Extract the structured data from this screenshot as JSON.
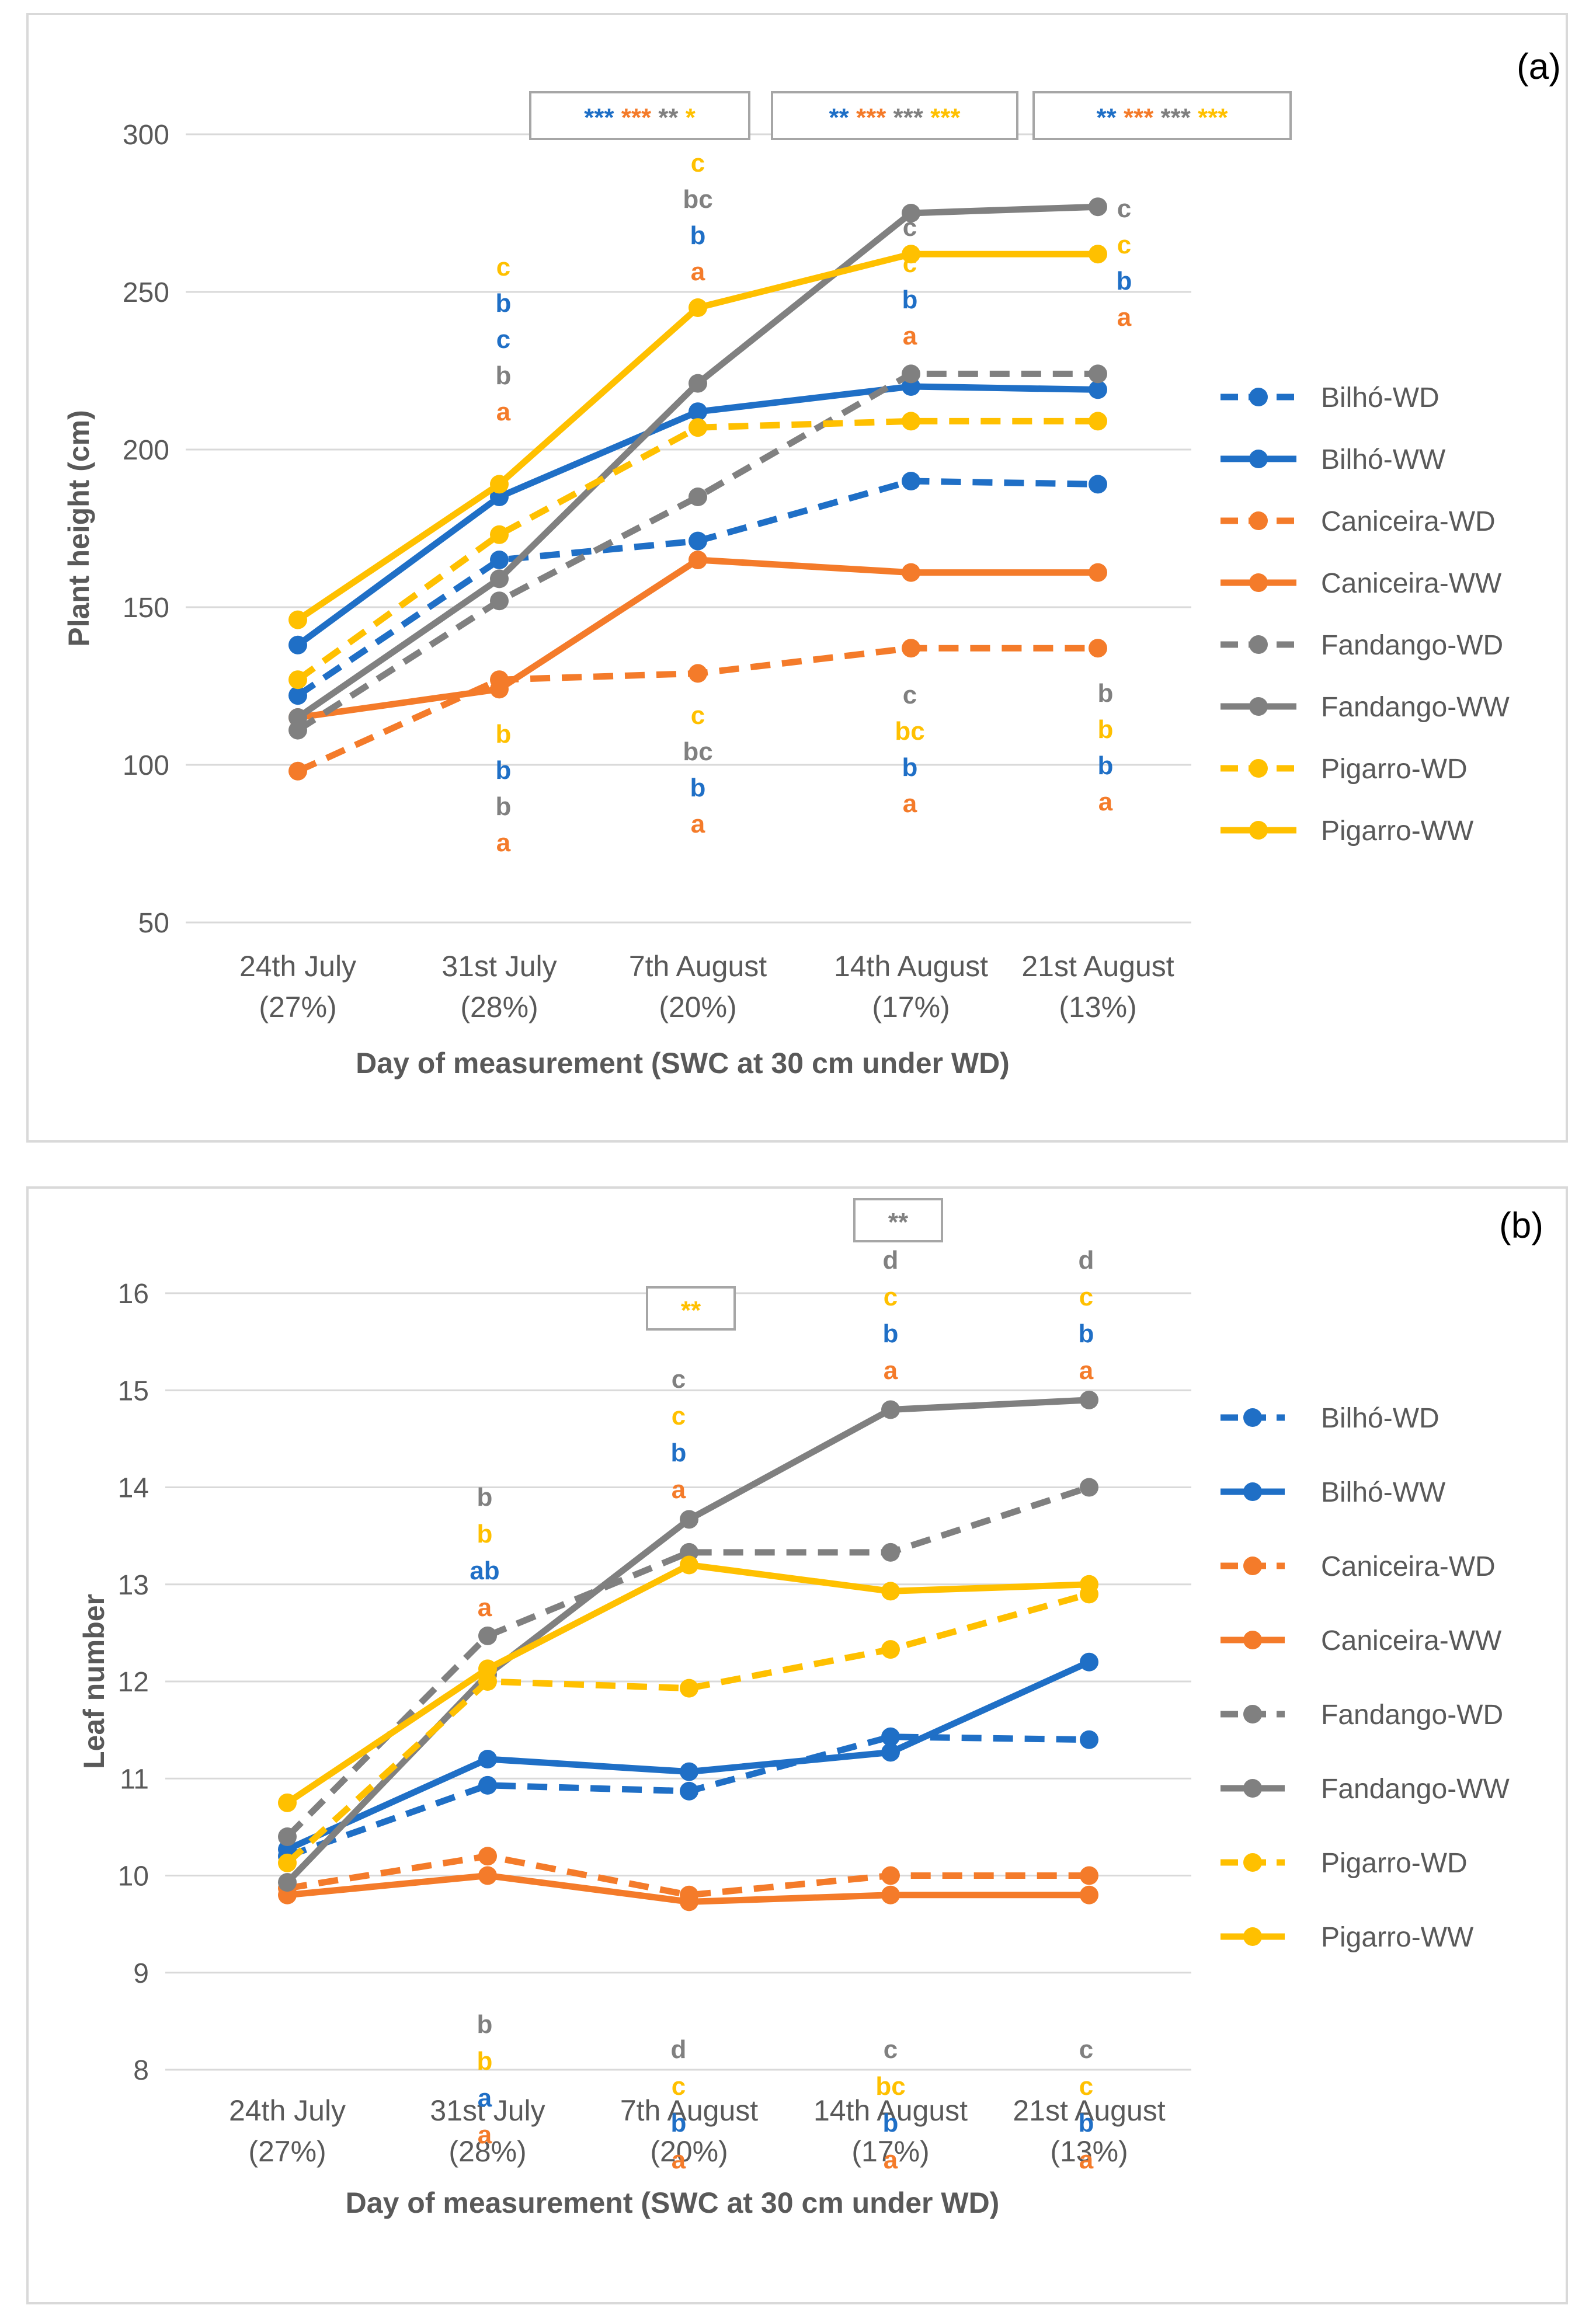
{
  "colors": {
    "Bilhó": "#1f6fc6",
    "Caniceira": "#f47b2a",
    "Fandango": "#808080",
    "Pigarro": "#ffc000",
    "grid": "#d9d9d9",
    "axis_text": "#595959",
    "box_border": "#a6a6a6"
  },
  "chart_data": [
    {
      "id": "a",
      "panel_label": "(a)",
      "type": "line",
      "title": "",
      "xlabel": "Day of measurement (SWC at 30 cm under WD)",
      "ylabel": "Plant height (cm)",
      "ylim": [
        50,
        300
      ],
      "yticks": [
        50,
        100,
        150,
        200,
        250,
        300
      ],
      "categories": [
        {
          "line1": "24th July",
          "line2": "(27%)"
        },
        {
          "line1": "31st July",
          "line2": "(28%)"
        },
        {
          "line1": "7th August",
          "line2": "(20%)"
        },
        {
          "line1": "14th August",
          "line2": "(17%)"
        },
        {
          "line1": "21st August",
          "line2": "(13%)"
        }
      ],
      "series": [
        {
          "name": "Bilhó-WD",
          "cultivar": "Bilhó",
          "dashed": true,
          "values": [
            122,
            165,
            171,
            190,
            189
          ]
        },
        {
          "name": "Bilhó-WW",
          "cultivar": "Bilhó",
          "dashed": false,
          "values": [
            138,
            185,
            212,
            220,
            219
          ]
        },
        {
          "name": "Caniceira-WD",
          "cultivar": "Caniceira",
          "dashed": true,
          "values": [
            98,
            127,
            129,
            137,
            137
          ]
        },
        {
          "name": "Caniceira-WW",
          "cultivar": "Caniceira",
          "dashed": false,
          "values": [
            115,
            124,
            165,
            161,
            161
          ]
        },
        {
          "name": "Fandango-WD",
          "cultivar": "Fandango",
          "dashed": true,
          "values": [
            111,
            152,
            185,
            224,
            224
          ]
        },
        {
          "name": "Fandango-WW",
          "cultivar": "Fandango",
          "dashed": false,
          "values": [
            115,
            159,
            221,
            275,
            277
          ]
        },
        {
          "name": "Pigarro-WD",
          "cultivar": "Pigarro",
          "dashed": true,
          "values": [
            127,
            173,
            207,
            209,
            209
          ]
        },
        {
          "name": "Pigarro-WW",
          "cultivar": "Pigarro",
          "dashed": false,
          "values": [
            146,
            189,
            245,
            262,
            262
          ]
        }
      ],
      "significance": [
        {
          "category_start": 1,
          "category_end": 2,
          "marks": [
            [
              "***",
              "Bilhó"
            ],
            [
              "***",
              "Caniceira"
            ],
            [
              "**",
              "Fandango"
            ],
            [
              "*",
              "Pigarro"
            ]
          ]
        },
        {
          "category_start": 2,
          "category_end": 3,
          "marks": [
            [
              "**",
              "Bilhó"
            ],
            [
              "***",
              "Caniceira"
            ],
            [
              "***",
              "Fandango"
            ],
            [
              "***",
              "Pigarro"
            ]
          ]
        },
        {
          "category_start": 3,
          "category_end": 4,
          "marks": [
            [
              "**",
              "Bilhó"
            ],
            [
              "***",
              "Caniceira"
            ],
            [
              "***",
              "Fandango"
            ],
            [
              "***",
              "Pigarro"
            ]
          ]
        }
      ],
      "letter_groups": [
        {
          "category": 1,
          "position": "above",
          "letters": [
            [
              "a",
              "Caniceira"
            ],
            [
              "b",
              "Fandango"
            ],
            [
              "c",
              "Bilhó"
            ],
            [
              "b",
              "Bilhó"
            ],
            [
              "c",
              "Pigarro"
            ]
          ]
        },
        {
          "category": 1,
          "position": "below",
          "letters": [
            [
              "b",
              "Pigarro"
            ],
            [
              "b",
              "Bilhó"
            ],
            [
              "b",
              "Fandango"
            ],
            [
              "a",
              "Caniceira"
            ]
          ]
        },
        {
          "category": 2,
          "position": "above",
          "letters": [
            [
              "a",
              "Caniceira"
            ],
            [
              "b",
              "Bilhó"
            ],
            [
              "bc",
              "Fandango"
            ],
            [
              "c",
              "Pigarro"
            ]
          ]
        },
        {
          "category": 2,
          "position": "below",
          "letters": [
            [
              "c",
              "Pigarro"
            ],
            [
              "bc",
              "Fandango"
            ],
            [
              "b",
              "Bilhó"
            ],
            [
              "a",
              "Caniceira"
            ]
          ]
        },
        {
          "category": 3,
          "position": "above",
          "letters": [
            [
              "a",
              "Caniceira"
            ],
            [
              "b",
              "Bilhó"
            ],
            [
              "c",
              "Pigarro"
            ],
            [
              "c",
              "Fandango"
            ]
          ]
        },
        {
          "category": 3,
          "position": "below",
          "letters": [
            [
              "c",
              "Fandango"
            ],
            [
              "bc",
              "Pigarro"
            ],
            [
              "b",
              "Bilhó"
            ],
            [
              "a",
              "Caniceira"
            ]
          ]
        },
        {
          "category": 4,
          "position": "right",
          "letters": [
            [
              "a",
              "Caniceira"
            ],
            [
              "b",
              "Bilhó"
            ],
            [
              "c",
              "Pigarro"
            ],
            [
              "c",
              "Fandango"
            ]
          ]
        },
        {
          "category": 4,
          "position": "below",
          "letters": [
            [
              "b",
              "Fandango"
            ],
            [
              "b",
              "Pigarro"
            ],
            [
              "b",
              "Bilhó"
            ],
            [
              "a",
              "Caniceira"
            ]
          ]
        }
      ],
      "legend_position": "right"
    },
    {
      "id": "b",
      "panel_label": "(b)",
      "type": "line",
      "title": "",
      "xlabel": "Day of measurement (SWC at 30 cm under WD)",
      "ylabel": "Leaf number",
      "ylim": [
        8,
        16
      ],
      "yticks": [
        8,
        9,
        10,
        11,
        12,
        13,
        14,
        15,
        16
      ],
      "categories": [
        {
          "line1": "24th July",
          "line2": "(27%)"
        },
        {
          "line1": "31st July",
          "line2": "(28%)"
        },
        {
          "line1": "7th August",
          "line2": "(20%)"
        },
        {
          "line1": "14th August",
          "line2": "(17%)"
        },
        {
          "line1": "21st August",
          "line2": "(13%)"
        }
      ],
      "series": [
        {
          "name": "Bilhó-WD",
          "cultivar": "Bilhó",
          "dashed": true,
          "values": [
            10.2,
            10.93,
            10.87,
            11.43,
            11.4
          ]
        },
        {
          "name": "Bilhó-WW",
          "cultivar": "Bilhó",
          "dashed": false,
          "values": [
            10.27,
            11.2,
            11.07,
            11.27,
            12.2
          ]
        },
        {
          "name": "Caniceira-WD",
          "cultivar": "Caniceira",
          "dashed": true,
          "values": [
            9.87,
            10.2,
            9.8,
            10.0,
            10.0
          ]
        },
        {
          "name": "Caniceira-WW",
          "cultivar": "Caniceira",
          "dashed": false,
          "values": [
            9.8,
            10.0,
            9.73,
            9.8,
            9.8
          ]
        },
        {
          "name": "Fandango-WD",
          "cultivar": "Fandango",
          "dashed": true,
          "values": [
            10.4,
            12.47,
            13.33,
            13.33,
            14.0
          ]
        },
        {
          "name": "Fandango-WW",
          "cultivar": "Fandango",
          "dashed": false,
          "values": [
            9.93,
            12.07,
            13.67,
            14.8,
            14.9
          ]
        },
        {
          "name": "Pigarro-WD",
          "cultivar": "Pigarro",
          "dashed": true,
          "values": [
            10.13,
            12.0,
            11.93,
            12.33,
            12.9
          ]
        },
        {
          "name": "Pigarro-WW",
          "cultivar": "Pigarro",
          "dashed": false,
          "values": [
            10.75,
            12.13,
            13.2,
            12.93,
            13.0
          ]
        }
      ],
      "significance": [
        {
          "category_start": 2,
          "category_end": 2,
          "marks": [
            [
              "**",
              "Pigarro"
            ]
          ]
        },
        {
          "category_start": 3,
          "category_end": 3,
          "marks": [
            [
              "**",
              "Fandango"
            ]
          ]
        }
      ],
      "letter_groups": [
        {
          "category": 1,
          "position": "above",
          "letters": [
            [
              "a",
              "Caniceira"
            ],
            [
              "ab",
              "Bilhó"
            ],
            [
              "b",
              "Pigarro"
            ],
            [
              "b",
              "Fandango"
            ]
          ]
        },
        {
          "category": 1,
          "position": "below",
          "letters": [
            [
              "b",
              "Fandango"
            ],
            [
              "b",
              "Pigarro"
            ],
            [
              "a",
              "Bilhó"
            ],
            [
              "a",
              "Caniceira"
            ]
          ]
        },
        {
          "category": 2,
          "position": "above",
          "letters": [
            [
              "a",
              "Caniceira"
            ],
            [
              "b",
              "Bilhó"
            ],
            [
              "c",
              "Pigarro"
            ],
            [
              "c",
              "Fandango"
            ]
          ]
        },
        {
          "category": 2,
          "position": "below",
          "letters": [
            [
              "d",
              "Fandango"
            ],
            [
              "c",
              "Pigarro"
            ],
            [
              "b",
              "Bilhó"
            ],
            [
              "a",
              "Caniceira"
            ]
          ]
        },
        {
          "category": 3,
          "position": "above",
          "letters": [
            [
              "a",
              "Caniceira"
            ],
            [
              "b",
              "Bilhó"
            ],
            [
              "c",
              "Pigarro"
            ],
            [
              "d",
              "Fandango"
            ]
          ]
        },
        {
          "category": 3,
          "position": "below",
          "letters": [
            [
              "c",
              "Fandango"
            ],
            [
              "bc",
              "Pigarro"
            ],
            [
              "b",
              "Bilhó"
            ],
            [
              "a",
              "Caniceira"
            ]
          ]
        },
        {
          "category": 4,
          "position": "above",
          "letters": [
            [
              "a",
              "Caniceira"
            ],
            [
              "b",
              "Bilhó"
            ],
            [
              "c",
              "Pigarro"
            ],
            [
              "d",
              "Fandango"
            ]
          ]
        },
        {
          "category": 4,
          "position": "below",
          "letters": [
            [
              "c",
              "Fandango"
            ],
            [
              "c",
              "Pigarro"
            ],
            [
              "b",
              "Bilhó"
            ],
            [
              "a",
              "Caniceira"
            ]
          ]
        }
      ],
      "legend_position": "right"
    }
  ]
}
